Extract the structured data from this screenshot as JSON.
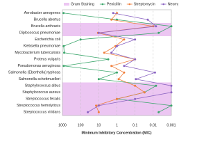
{
  "chart_data": {
    "type": "line",
    "xlabel": "Minimum Inhibitory Concentration (MIC)",
    "categories": [
      "Aerobacter aerogenes",
      "Brucella abortus",
      "Brucella anthracis",
      "Diplococcus pneumoniae",
      "Escherichia coli",
      "Klebsiella pneumoniae",
      "Mycobacterium tuberculosis",
      "Proteus vulgaris",
      "Pseudomonas aeruginosa",
      "Salmonella (Eberthella) typhosa",
      "Salmonella schottmuelleri",
      "Staphylococcus albus",
      "Staphylococcus aureus",
      "Streptococcus fecalis",
      "Streptococcus hemolyticus",
      "Streptococcus viridans"
    ],
    "band": {
      "name": "Gram Staining",
      "color": "#ecc6f2",
      "rows": [
        2,
        3,
        11,
        12,
        13,
        14,
        15
      ]
    },
    "series": [
      {
        "name": "Penicillin",
        "color": "#3aa66b",
        "values": [
          870,
          1,
          0.001,
          0.005,
          100,
          850,
          800,
          3,
          850,
          1,
          10,
          0.007,
          0.03,
          1,
          0.001,
          0.005
        ]
      },
      {
        "name": "Streptomycin",
        "color": "#f07f3c",
        "values": [
          1,
          2,
          0.01,
          11,
          0.4,
          1.2,
          5,
          0.1,
          2,
          0.4,
          0.8,
          0.1,
          0.03,
          1,
          14,
          10
        ]
      },
      {
        "name": "Neomycin",
        "color": "#8a63c2",
        "values": [
          1.6,
          0.02,
          0.007,
          10,
          0.1,
          1,
          2,
          0.1,
          0.4,
          0.008,
          0.09,
          0.001,
          0.001,
          0.1,
          10,
          40
        ]
      }
    ],
    "xscale": "log",
    "xlim": [
      1000,
      0.001
    ],
    "xticks": [
      1000,
      100,
      10,
      1,
      0.1,
      0.01,
      0.001
    ],
    "grid": true
  }
}
